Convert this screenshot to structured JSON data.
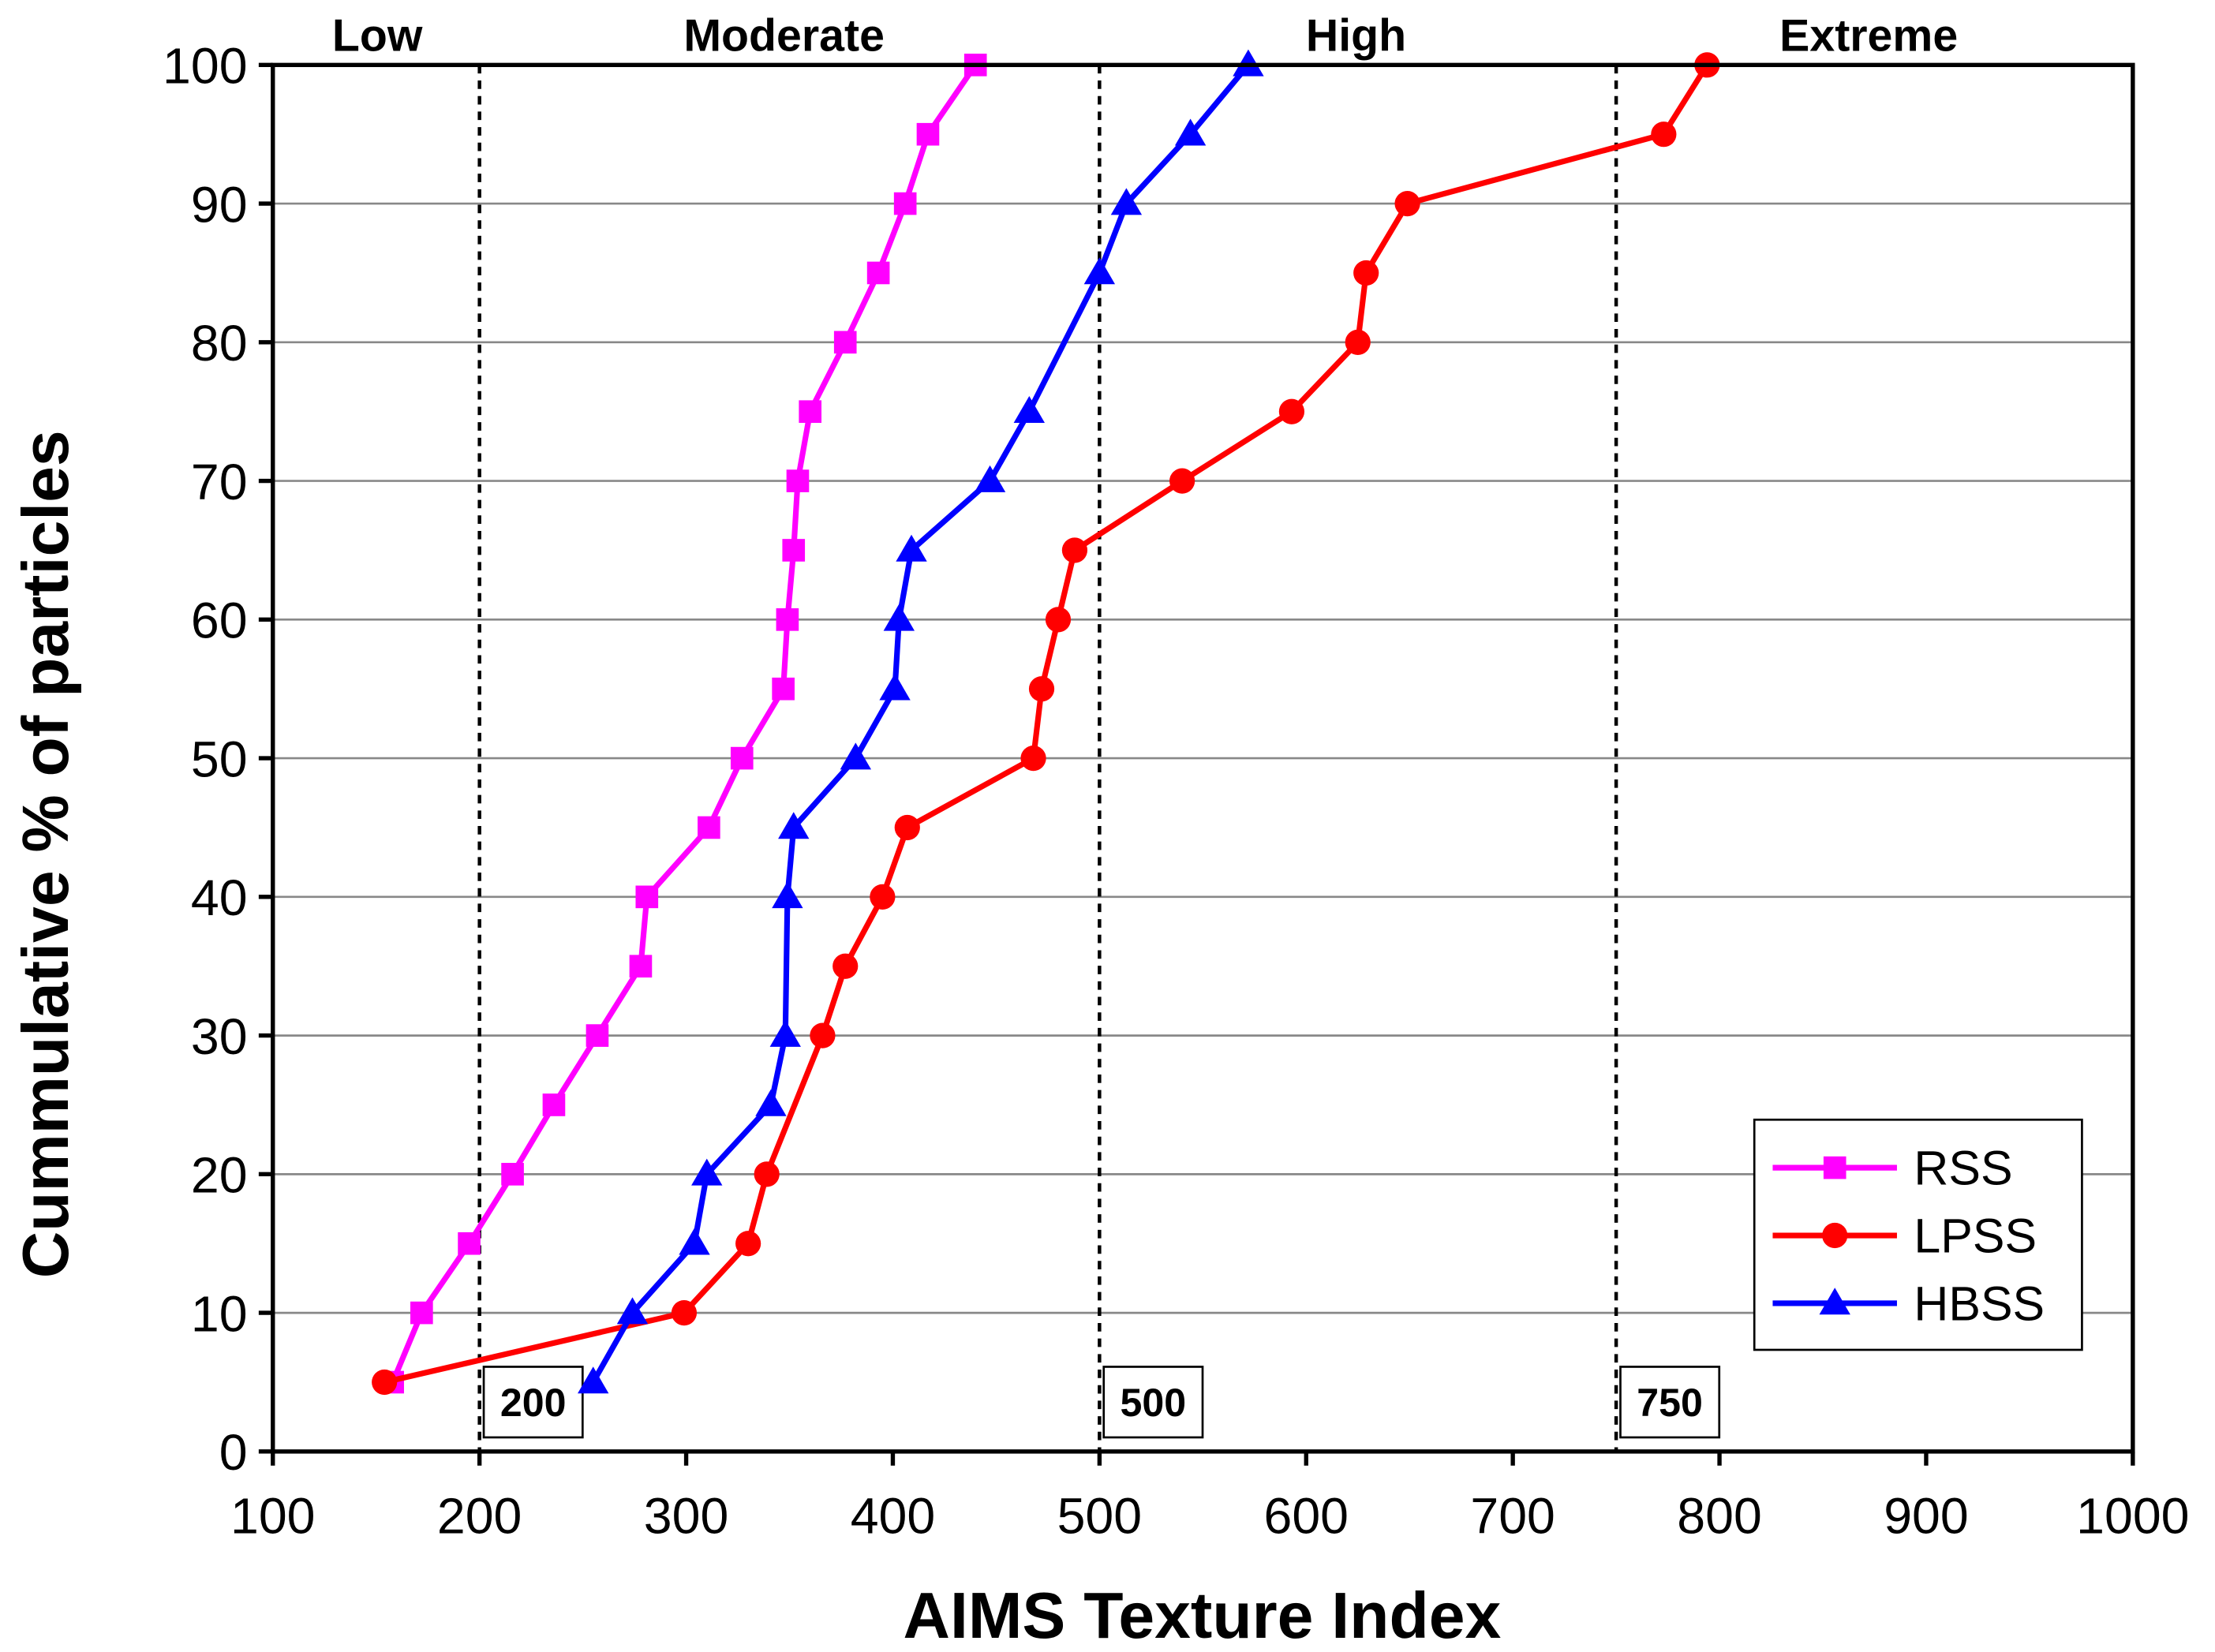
{
  "chart_data": {
    "type": "line",
    "xlabel": "AIMS Texture Index",
    "ylabel": "Cummulative % of particles",
    "xlim": [
      100,
      1000
    ],
    "ylim": [
      0,
      100
    ],
    "xticks": [
      100,
      200,
      300,
      400,
      500,
      600,
      700,
      800,
      900,
      1000
    ],
    "yticks": [
      0,
      10,
      20,
      30,
      40,
      50,
      60,
      70,
      80,
      90,
      100
    ],
    "grid": "horizontal",
    "legend_position": "bottom-right",
    "zones": [
      {
        "label": "Low",
        "center": 265
      },
      {
        "label": "Moderate",
        "center": 350
      },
      {
        "label": "High",
        "center": 625
      },
      {
        "label": "Extreme",
        "center": 875
      }
    ],
    "thresholds": [
      {
        "value": 200,
        "label": "200"
      },
      {
        "value": 500,
        "label": "500"
      },
      {
        "value": 750,
        "label": "750"
      }
    ],
    "series": [
      {
        "name": "RSS",
        "color": "#ff00ff",
        "marker": "square",
        "x": [
          158,
          172,
          195,
          216,
          236,
          257,
          278,
          281,
          311,
          327,
          347,
          349,
          352,
          354,
          360,
          377,
          393,
          406,
          417,
          440
        ],
        "y": [
          5,
          10,
          15,
          20,
          25,
          30,
          35,
          40,
          45,
          50,
          55,
          60,
          65,
          70,
          75,
          80,
          85,
          90,
          95,
          100
        ]
      },
      {
        "name": "LPSS",
        "color": "#ff0000",
        "marker": "circle",
        "x": [
          154,
          299,
          330,
          339,
          366,
          377,
          395,
          407,
          468,
          472,
          480,
          488,
          540,
          593,
          625,
          629,
          649,
          773,
          794
        ],
        "y": [
          5,
          10,
          15,
          20,
          30,
          35,
          40,
          45,
          50,
          55,
          60,
          65,
          70,
          75,
          80,
          85,
          90,
          95,
          100
        ]
      },
      {
        "name": "HBSS",
        "color": "#0000ff",
        "marker": "triangle",
        "x": [
          255,
          274,
          304,
          310,
          341,
          348,
          349,
          352,
          382,
          401,
          403,
          409,
          447,
          466,
          500,
          513,
          544,
          572
        ],
        "y": [
          5,
          10,
          15,
          20,
          25,
          30,
          40,
          45,
          50,
          55,
          60,
          65,
          70,
          75,
          85,
          90,
          95,
          100
        ]
      }
    ]
  }
}
